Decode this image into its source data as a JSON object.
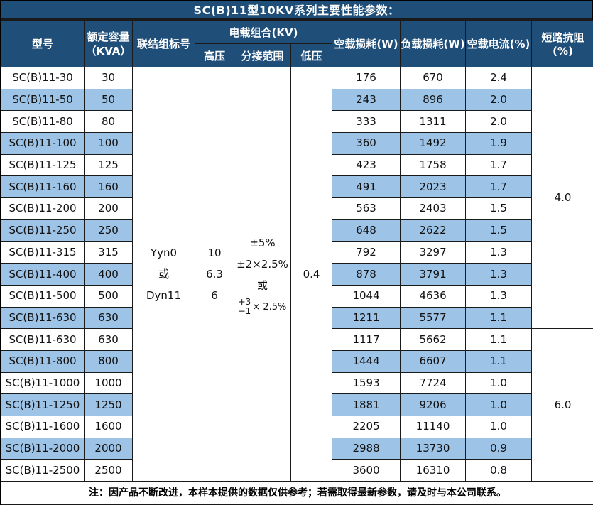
{
  "title": "SC(B)11型10KV系列主要性能参数：",
  "colors": {
    "header_bg": "#1F4E79",
    "stripe_bg": "#9DC3E6",
    "border": "#1a1a1a",
    "title_text": "#ffffff"
  },
  "table": {
    "headers": {
      "model": "型号",
      "capacity_line1": "额定容量",
      "capacity_line2": "（KVA）",
      "vector_group": "联结组标号",
      "voltage_combo": "电载组合(KV)",
      "hv": "高压",
      "tap_range": "分接范围",
      "lv": "低压",
      "no_load_loss": "空载损耗(W)",
      "load_loss": "负载损耗(W)",
      "no_load_current": "空载电流(%)",
      "impedance": "短路抗阻(%)"
    },
    "merged": {
      "vector_group_lines": [
        "Yyn0",
        "或",
        "Dyn11"
      ],
      "hv_lines": [
        "10",
        "6.3",
        "6"
      ],
      "tap_lines": [
        "±5%",
        "±2×2.5%",
        "或"
      ],
      "tap_frac_top": "+3",
      "tap_frac_bottom": "−1",
      "tap_frac_suffix": "× 2.5%",
      "lv_value": "0.4",
      "impedance_group1": "4.0",
      "impedance_group2": "6.0"
    },
    "rows": [
      {
        "model": "SC(B)11-30",
        "capacity": "30",
        "no_load_loss": "176",
        "load_loss": "670",
        "no_load_current": "2.4"
      },
      {
        "model": "SC(B)11-50",
        "capacity": "50",
        "no_load_loss": "243",
        "load_loss": "896",
        "no_load_current": "2.0"
      },
      {
        "model": "SC(B)11-80",
        "capacity": "80",
        "no_load_loss": "333",
        "load_loss": "1311",
        "no_load_current": "2.0"
      },
      {
        "model": "SC(B)11-100",
        "capacity": "100",
        "no_load_loss": "360",
        "load_loss": "1492",
        "no_load_current": "1.9"
      },
      {
        "model": "SC(B)11-125",
        "capacity": "125",
        "no_load_loss": "423",
        "load_loss": "1758",
        "no_load_current": "1.7"
      },
      {
        "model": "SC(B)11-160",
        "capacity": "160",
        "no_load_loss": "491",
        "load_loss": "2023",
        "no_load_current": "1.7"
      },
      {
        "model": "SC(B)11-200",
        "capacity": "200",
        "no_load_loss": "563",
        "load_loss": "2403",
        "no_load_current": "1.5"
      },
      {
        "model": "SC(B)11-250",
        "capacity": "250",
        "no_load_loss": "648",
        "load_loss": "2622",
        "no_load_current": "1.5"
      },
      {
        "model": "SC(B)11-315",
        "capacity": "315",
        "no_load_loss": "792",
        "load_loss": "3297",
        "no_load_current": "1.3"
      },
      {
        "model": "SC(B)11-400",
        "capacity": "400",
        "no_load_loss": "878",
        "load_loss": "3791",
        "no_load_current": "1.3"
      },
      {
        "model": "SC(B)11-500",
        "capacity": "500",
        "no_load_loss": "1044",
        "load_loss": "4636",
        "no_load_current": "1.3"
      },
      {
        "model": "SC(B)11-630",
        "capacity": "630",
        "no_load_loss": "1211",
        "load_loss": "5577",
        "no_load_current": "1.1"
      },
      {
        "model": "SC(B)11-630",
        "capacity": "630",
        "no_load_loss": "1117",
        "load_loss": "5662",
        "no_load_current": "1.1"
      },
      {
        "model": "SC(B)11-800",
        "capacity": "800",
        "no_load_loss": "1444",
        "load_loss": "6607",
        "no_load_current": "1.1"
      },
      {
        "model": "SC(B)11-1000",
        "capacity": "1000",
        "no_load_loss": "1593",
        "load_loss": "7724",
        "no_load_current": "1.0"
      },
      {
        "model": "SC(B)11-1250",
        "capacity": "1250",
        "no_load_loss": "1881",
        "load_loss": "9206",
        "no_load_current": "1.0"
      },
      {
        "model": "SC(B)11-1600",
        "capacity": "1600",
        "no_load_loss": "2205",
        "load_loss": "11140",
        "no_load_current": "1.0"
      },
      {
        "model": "SC(B)11-2000",
        "capacity": "2000",
        "no_load_loss": "2988",
        "load_loss": "13730",
        "no_load_current": "0.9"
      },
      {
        "model": "SC(B)11-2500",
        "capacity": "2500",
        "no_load_loss": "3600",
        "load_loss": "16310",
        "no_load_current": "0.8"
      }
    ],
    "note": "注：因产品不断改进，本样本提供的数据仅供参考；若需取得最新参数，请及时与本公司联系。"
  }
}
